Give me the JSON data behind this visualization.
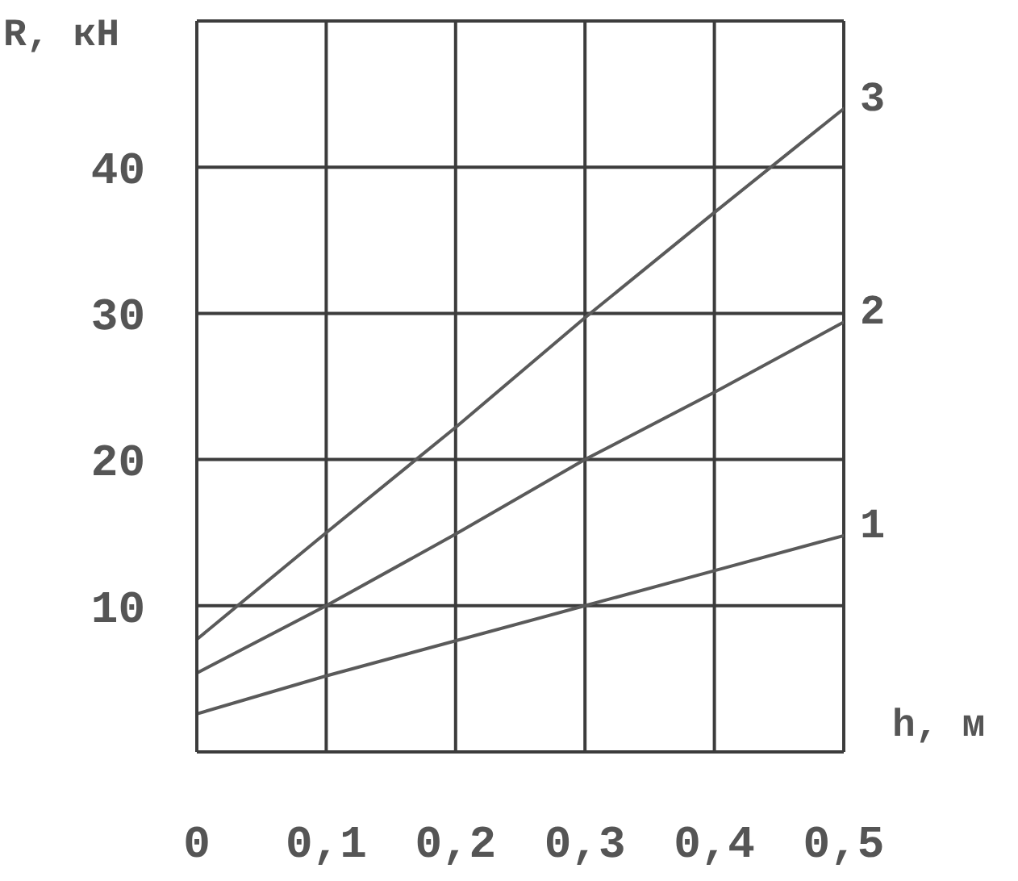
{
  "chart_data": {
    "type": "line",
    "xlabel": "h, м",
    "ylabel": "R, кН",
    "x": [
      0,
      0.1,
      0.2,
      0.3,
      0.4,
      0.5
    ],
    "series": [
      {
        "name": "1",
        "color": "#5a5a5a",
        "values": [
          2.6,
          5.2,
          7.6,
          10,
          12.4,
          14.8
        ]
      },
      {
        "name": "2",
        "color": "#5a5a5a",
        "values": [
          5.4,
          10,
          14.9,
          20,
          24.6,
          29.4
        ]
      },
      {
        "name": "3",
        "color": "#5a5a5a",
        "values": [
          7.7,
          15,
          22.2,
          29.7,
          36.9,
          44
        ]
      }
    ],
    "xlim": [
      0,
      0.5
    ],
    "xticks": [
      0,
      {
        "value": 0.1,
        "label": "0,1"
      },
      {
        "value": 0.2,
        "label": "0,2"
      },
      {
        "value": 0.3,
        "label": "0,3"
      },
      {
        "value": 0.4,
        "label": "0,4"
      },
      {
        "value": 0.5,
        "label": "0,5"
      }
    ],
    "ylim": [
      0,
      50
    ],
    "yticks": [
      10,
      20,
      30,
      40
    ],
    "grid": true,
    "marker": "none",
    "line_style": "solid"
  }
}
